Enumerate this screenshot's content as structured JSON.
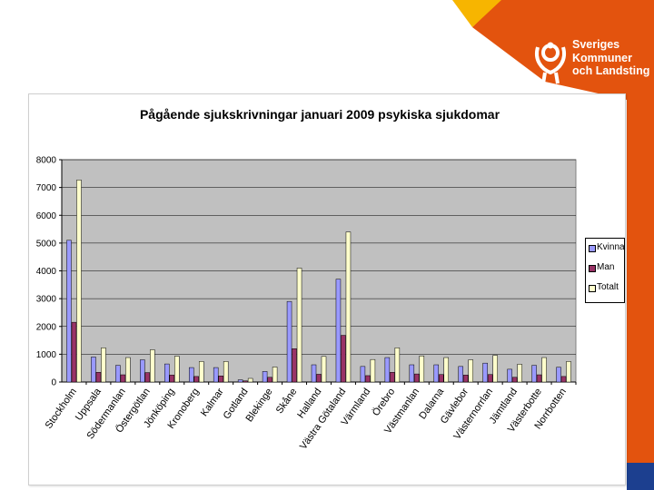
{
  "logo": {
    "lines": [
      "Sveriges",
      "Kommuner",
      "och Landsting"
    ]
  },
  "colors": {
    "orange": "#e3530e",
    "yellow": "#f7b500",
    "plot_bg": "#c0c0c0",
    "kvinna": "#9999ff",
    "man": "#993366",
    "totalt": "#ffffcc"
  },
  "chart_data": {
    "type": "bar",
    "title": "Pågående sjukskrivningar januari 2009 psykiska sjukdomar",
    "xlabel": "",
    "ylabel": "",
    "ylim": [
      0,
      8000
    ],
    "yticks": [
      0,
      1000,
      2000,
      3000,
      4000,
      5000,
      6000,
      7000,
      8000
    ],
    "grid": true,
    "legend_position": "right",
    "categories": [
      "Stockholm",
      "Uppsala",
      "Södermanland",
      "Östergötland",
      "Jönköping",
      "Kronoberg",
      "Kalmar",
      "Gotland",
      "Blekinge",
      "Skåne",
      "Halland",
      "Västra Götaland",
      "Värmland",
      "Örebro",
      "Västmanland",
      "Dalarna",
      "Gävleborg",
      "Västernorrland",
      "Jämtland",
      "Västerbotten",
      "Norrbotten"
    ],
    "tick_labels": [
      "Stockholm",
      "Uppsala",
      "Södermanlan",
      "Östergötlan",
      "Jönköping",
      "Kronoberg",
      "Kalmar",
      "Gotland",
      "Blekinge",
      "Skåne",
      "Halland",
      "Västra Götaland",
      "Värmland",
      "Örebro",
      "Västmanlan",
      "Dalarna",
      "Gävlebor",
      "Västernorrlan",
      "Jämtland",
      "Västerbotte",
      "Norrbotten"
    ],
    "series": [
      {
        "name": "Kvinna",
        "values": [
          5100,
          900,
          600,
          800,
          650,
          520,
          520,
          80,
          380,
          2900,
          620,
          3700,
          560,
          880,
          620,
          620,
          560,
          680,
          460,
          600,
          530
        ]
      },
      {
        "name": "Man",
        "values": [
          2150,
          350,
          260,
          340,
          250,
          200,
          220,
          40,
          170,
          1200,
          280,
          1680,
          230,
          350,
          290,
          270,
          250,
          270,
          170,
          260,
          200
        ]
      },
      {
        "name": "Totalt",
        "values": [
          7270,
          1230,
          880,
          1160,
          930,
          740,
          740,
          130,
          540,
          4100,
          920,
          5400,
          810,
          1230,
          940,
          880,
          800,
          960,
          640,
          880,
          740
        ]
      }
    ]
  }
}
